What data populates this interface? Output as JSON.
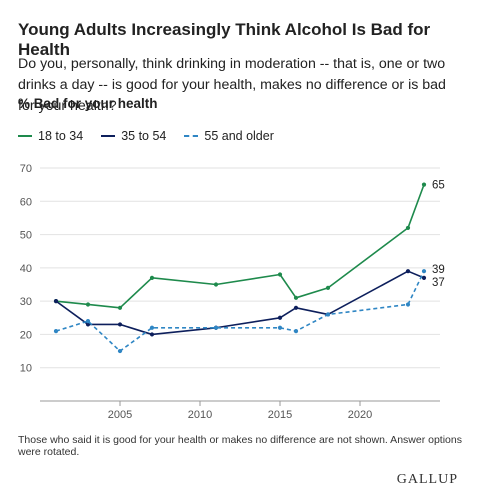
{
  "title": "Young Adults Increasingly Think Alcohol Is Bad for Health",
  "subtitle": "Do you, personally, think drinking in moderation -- that is, one or two drinks a day -- is good for your health, makes no difference or is bad for your health?",
  "measure_label": "% Bad for your health",
  "footnote": "Those who said it is good for your health or makes no difference are not shown. Answer options were rotated.",
  "brand": "GALLUP",
  "colors": {
    "series_18_34": "#1e8a4c",
    "series_35_54": "#0d1f5c",
    "series_55": "#2f86c4",
    "grid": "#e2e2e2",
    "axis": "#555555"
  },
  "chart_data": {
    "type": "line",
    "xlim": [
      2000,
      2025
    ],
    "ylim": [
      0,
      70
    ],
    "x_ticks": [
      2005,
      2010,
      2015,
      2020
    ],
    "y_ticks": [
      10,
      20,
      30,
      40,
      50,
      60,
      70
    ],
    "grid": true,
    "legend_placement": "top-left",
    "series": [
      {
        "name": "18 to 34",
        "style": "solid",
        "x": [
          2001,
          2003,
          2005,
          2007,
          2011,
          2015,
          2016,
          2018,
          2023,
          2024
        ],
        "y": [
          30,
          29,
          28,
          37,
          35,
          38,
          31,
          34,
          52,
          65
        ],
        "end_label": "65"
      },
      {
        "name": "35 to 54",
        "style": "solid",
        "x": [
          2001,
          2003,
          2005,
          2007,
          2011,
          2015,
          2016,
          2018,
          2023,
          2024
        ],
        "y": [
          30,
          23,
          23,
          20,
          22,
          25,
          28,
          26,
          39,
          37
        ],
        "end_label": "37"
      },
      {
        "name": "55 and older",
        "style": "dashed",
        "x": [
          2001,
          2003,
          2005,
          2007,
          2011,
          2015,
          2016,
          2018,
          2023,
          2024
        ],
        "y": [
          21,
          24,
          15,
          22,
          22,
          22,
          21,
          26,
          29,
          39
        ],
        "end_label": "39"
      }
    ]
  }
}
